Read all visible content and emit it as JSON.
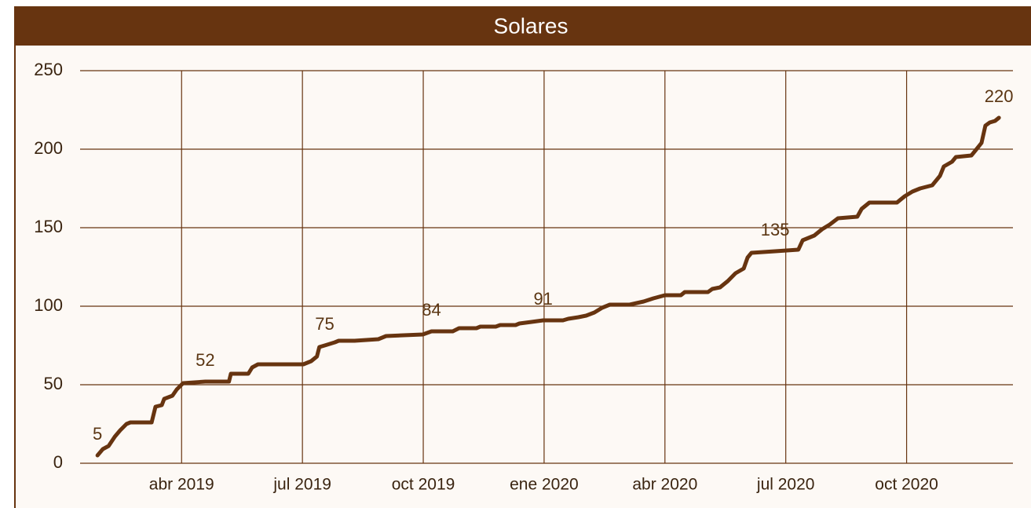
{
  "chart_data": {
    "type": "line",
    "title": "Solares",
    "x": [
      2019.076,
      2019.087,
      2019.099,
      2019.112,
      2019.123,
      2019.136,
      2019.144,
      2019.188,
      2019.196,
      2019.209,
      2019.214,
      2019.231,
      2019.24,
      2019.253,
      2019.299,
      2019.348,
      2019.352,
      2019.388,
      2019.396,
      2019.408,
      2019.502,
      2019.518,
      2019.53,
      2019.535,
      2019.546,
      2019.567,
      2019.575,
      2019.608,
      2019.657,
      2019.673,
      2019.749,
      2019.767,
      2019.811,
      2019.824,
      2019.86,
      2019.868,
      2019.9,
      2019.909,
      2019.941,
      2019.949,
      2019.974,
      2019.998,
      2020.039,
      2020.05,
      2020.071,
      2020.087,
      2020.104,
      2020.12,
      2020.136,
      2020.177,
      2020.206,
      2020.226,
      2020.25,
      2020.283,
      2020.291,
      2020.339,
      2020.348,
      2020.364,
      2020.38,
      2020.396,
      2020.413,
      2020.421,
      2020.429,
      2020.478,
      2020.526,
      2020.535,
      2020.559,
      2020.575,
      2020.591,
      2020.608,
      2020.648,
      2020.657,
      2020.673,
      2020.73,
      2020.746,
      2020.762,
      2020.778,
      2020.803,
      2020.819,
      2020.827,
      2020.844,
      2020.852,
      2020.884,
      2020.892,
      2020.905,
      2020.913,
      2020.922,
      2020.933,
      2020.941
    ],
    "series": [
      {
        "name": "Solares",
        "color": "#673410",
        "values": [
          5,
          9,
          11,
          17,
          21,
          25,
          26,
          26,
          36,
          37,
          41,
          43,
          47,
          51,
          52,
          52,
          57,
          57,
          61,
          63,
          63,
          65,
          68,
          74,
          75,
          77,
          78,
          78,
          79,
          81,
          82,
          84,
          84,
          86,
          86,
          87,
          87,
          88,
          88,
          89,
          90,
          91,
          91,
          92,
          93,
          94,
          96,
          99,
          101,
          101,
          103,
          105,
          107,
          107,
          109,
          109,
          111,
          112,
          116,
          121,
          124,
          131,
          134,
          135,
          136,
          142,
          145,
          149,
          152,
          156,
          157,
          162,
          166,
          166,
          170,
          173,
          175,
          177,
          183,
          189,
          192,
          195,
          196,
          199,
          204,
          215,
          217,
          218,
          220
        ],
        "value_labels": [
          "5",
          null,
          null,
          null,
          null,
          null,
          null,
          null,
          null,
          null,
          null,
          null,
          null,
          null,
          "52",
          null,
          null,
          null,
          null,
          null,
          null,
          null,
          null,
          null,
          "75",
          null,
          null,
          null,
          null,
          null,
          null,
          "84",
          null,
          null,
          null,
          null,
          null,
          null,
          null,
          null,
          null,
          "91",
          null,
          null,
          null,
          null,
          null,
          null,
          null,
          null,
          null,
          null,
          null,
          null,
          null,
          null,
          null,
          null,
          null,
          null,
          null,
          null,
          null,
          "135",
          null,
          null,
          null,
          null,
          null,
          null,
          null,
          null,
          null,
          null,
          null,
          null,
          null,
          null,
          null,
          null,
          null,
          null,
          null,
          null,
          null,
          null,
          null,
          null,
          "220"
        ]
      }
    ],
    "xlim": [
      2019.04,
      2020.97
    ],
    "xticks": [
      {
        "value": 2019.25,
        "label": "abr 2019"
      },
      {
        "value": 2019.5,
        "label": "jul 2019"
      },
      {
        "value": 2019.75,
        "label": "oct 2019"
      },
      {
        "value": 2020.0,
        "label": "ene 2020"
      },
      {
        "value": 2020.25,
        "label": "abr 2020"
      },
      {
        "value": 2020.5,
        "label": "jul 2020"
      },
      {
        "value": 2020.75,
        "label": "oct 2020"
      }
    ],
    "ylim": [
      0,
      250
    ],
    "yticks": [
      0,
      50,
      100,
      150,
      200,
      250
    ],
    "grid": true
  }
}
